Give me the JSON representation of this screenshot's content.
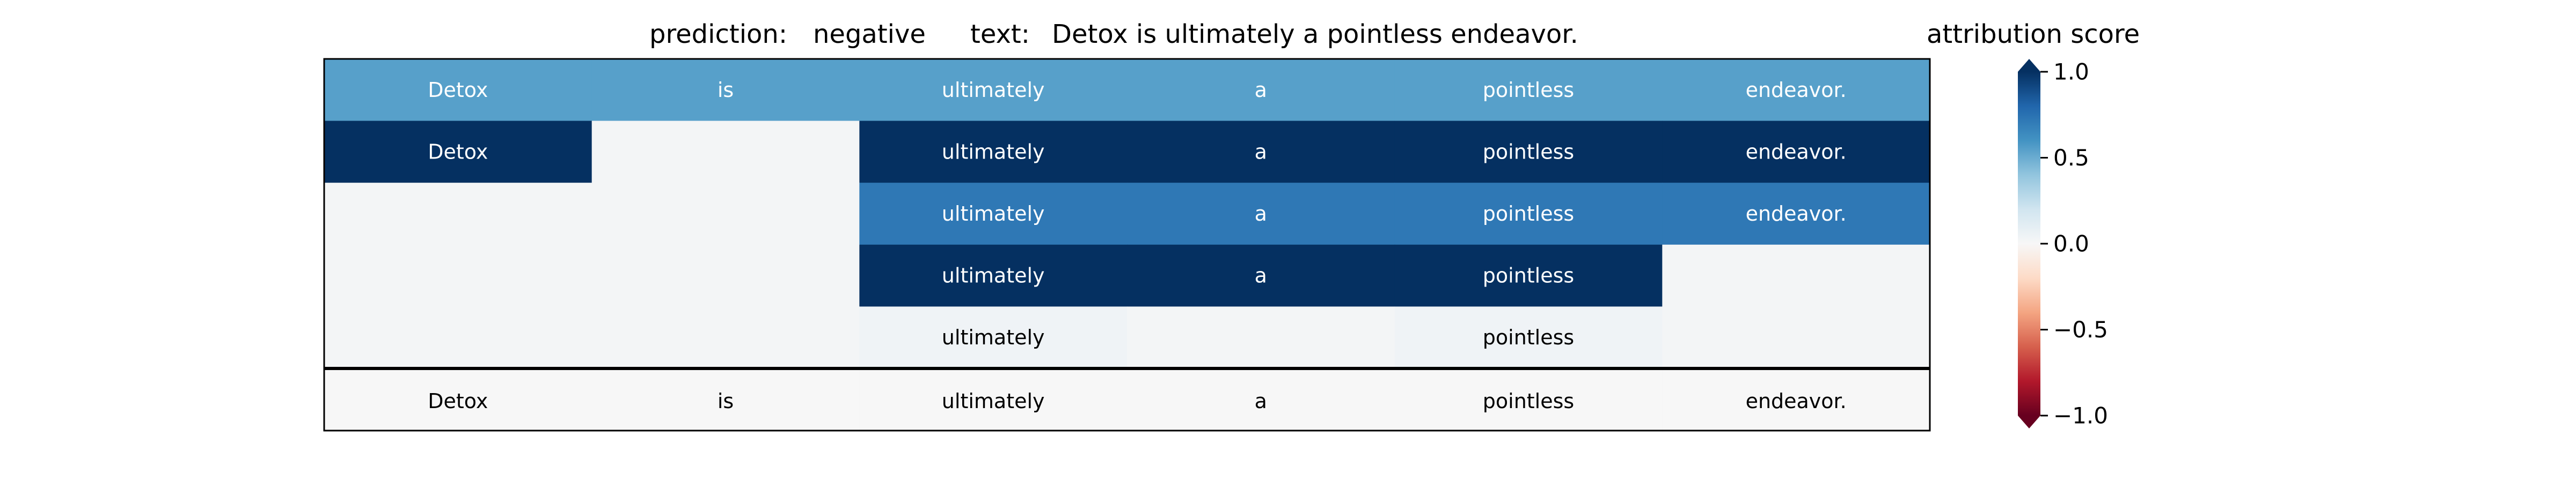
{
  "header": {
    "prediction_label": "prediction:",
    "prediction_value": "negative",
    "text_label": "text:",
    "text_value": "Detox is ultimately a pointless endeavor."
  },
  "chart_data": {
    "type": "heatmap",
    "columns": [
      "Detox",
      "is",
      "ultimately",
      "a",
      "pointless",
      "endeavor."
    ],
    "rows": [
      [
        0.55,
        0.55,
        0.55,
        0.55,
        0.55,
        0.55
      ],
      [
        1.0,
        0.02,
        1.0,
        1.0,
        1.0,
        1.0
      ],
      [
        0.02,
        0.02,
        0.72,
        0.72,
        0.72,
        0.72
      ],
      [
        0.02,
        0.02,
        1.0,
        1.0,
        1.0,
        0.02
      ],
      [
        0.02,
        0.02,
        0.04,
        0.02,
        0.04,
        0.02
      ]
    ],
    "shown_tokens": [
      [
        true,
        true,
        true,
        true,
        true,
        true
      ],
      [
        true,
        false,
        true,
        true,
        true,
        true
      ],
      [
        false,
        false,
        true,
        true,
        true,
        true
      ],
      [
        false,
        false,
        true,
        true,
        true,
        false
      ],
      [
        false,
        false,
        true,
        false,
        true,
        false
      ]
    ],
    "reference_row": {
      "tokens": [
        "Detox",
        "is",
        "ultimately",
        "a",
        "pointless",
        "endeavor."
      ],
      "values": [
        0.0,
        0.0,
        0.0,
        0.0,
        0.0,
        0.0
      ]
    },
    "colorbar": {
      "title": "attribution score",
      "colormap": "RdBu",
      "range": [
        -1.0,
        1.0
      ],
      "ticks": [
        1.0,
        0.5,
        0.0,
        -0.5,
        -1.0
      ],
      "tick_labels": [
        "1.0",
        "0.5",
        "0.0",
        "−0.5",
        "−1.0"
      ]
    }
  }
}
